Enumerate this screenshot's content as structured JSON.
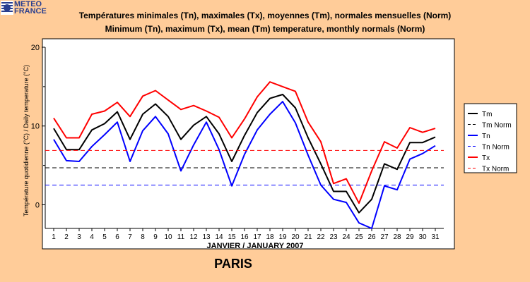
{
  "logo": {
    "line1": "METEO",
    "line2": "FRANCE"
  },
  "titles": {
    "line1": "Températures minimales (Tn), maximales (Tx), moyennes (Tm), normales mensuelles (Norm)",
    "line2": "Minimum (Tn), maximum (Tx), mean (Tm) temperature, monthly normals (Norm)"
  },
  "city": "PARIS",
  "colors": {
    "background": "#FFCC99",
    "plot": "#FFFFFF",
    "tm": "#000000",
    "tn": "#0000FF",
    "tx": "#FF0000"
  },
  "chart_data": {
    "type": "line",
    "xlabel": "JANVIER / JANUARY 2007",
    "ylabel": "Température quotidienne (°C) / Daily temperature (°C)",
    "ylim": [
      -3,
      20
    ],
    "y_ticks": [
      0,
      10,
      20
    ],
    "categories": [
      "1",
      "2",
      "3",
      "4",
      "5",
      "6",
      "7",
      "8",
      "9",
      "10",
      "11",
      "12",
      "13",
      "14",
      "15",
      "16",
      "17",
      "18",
      "19",
      "20",
      "21",
      "22",
      "23",
      "24",
      "25",
      "26",
      "27",
      "28",
      "29",
      "30",
      "31"
    ],
    "legend_position": "right",
    "series": [
      {
        "name": "Tm",
        "color": "#000000",
        "dash": false,
        "values": [
          9.7,
          7.0,
          7.0,
          9.5,
          10.3,
          11.8,
          8.3,
          11.5,
          12.8,
          11.2,
          8.3,
          10.1,
          11.2,
          9.0,
          5.5,
          8.8,
          11.7,
          13.5,
          14.0,
          12.3,
          8.5,
          5.2,
          1.7,
          1.7,
          -1.0,
          0.7,
          5.2,
          4.5,
          7.9,
          7.9,
          8.6
        ]
      },
      {
        "name": "Tm Norm",
        "color": "#000000",
        "dash": true,
        "values": [
          4.7,
          4.7,
          4.7,
          4.7,
          4.7,
          4.7,
          4.7,
          4.7,
          4.7,
          4.7,
          4.7,
          4.7,
          4.7,
          4.7,
          4.7,
          4.7,
          4.7,
          4.7,
          4.7,
          4.7,
          4.7,
          4.7,
          4.7,
          4.7,
          4.7,
          4.7,
          4.7,
          4.7,
          4.7,
          4.7,
          4.7
        ]
      },
      {
        "name": "Tn",
        "color": "#0000FF",
        "dash": false,
        "values": [
          8.3,
          5.6,
          5.5,
          7.4,
          8.9,
          10.5,
          5.5,
          9.4,
          11.2,
          9.0,
          4.3,
          7.6,
          10.5,
          7.0,
          2.4,
          6.4,
          9.5,
          11.5,
          13.1,
          10.4,
          6.3,
          2.5,
          0.7,
          0.3,
          -2.3,
          -3.0,
          2.4,
          1.9,
          5.8,
          6.5,
          7.5
        ]
      },
      {
        "name": "Tn Norm",
        "color": "#0000FF",
        "dash": true,
        "values": [
          2.5,
          2.5,
          2.5,
          2.5,
          2.5,
          2.5,
          2.5,
          2.5,
          2.5,
          2.5,
          2.5,
          2.5,
          2.5,
          2.5,
          2.5,
          2.5,
          2.5,
          2.5,
          2.5,
          2.5,
          2.5,
          2.5,
          2.5,
          2.5,
          2.5,
          2.5,
          2.5,
          2.5,
          2.5,
          2.5,
          2.5
        ]
      },
      {
        "name": "Tx",
        "color": "#FF0000",
        "dash": false,
        "values": [
          11.0,
          8.5,
          8.5,
          11.5,
          11.9,
          13.0,
          11.2,
          13.8,
          14.5,
          13.3,
          12.1,
          12.6,
          11.9,
          11.1,
          8.5,
          10.9,
          13.7,
          15.6,
          15.0,
          14.4,
          10.5,
          8.0,
          2.7,
          3.3,
          0.2,
          4.3,
          8.0,
          7.2,
          9.8,
          9.2,
          9.7
        ]
      },
      {
        "name": "Tx Norm",
        "color": "#FF0000",
        "dash": true,
        "values": [
          6.9,
          6.9,
          6.9,
          6.9,
          6.9,
          6.9,
          6.9,
          6.9,
          6.9,
          6.9,
          6.9,
          6.9,
          6.9,
          6.9,
          6.9,
          6.9,
          6.9,
          6.9,
          6.9,
          6.9,
          6.9,
          6.9,
          6.9,
          6.9,
          6.9,
          6.9,
          6.9,
          6.9,
          6.9,
          6.9,
          6.9
        ]
      }
    ]
  }
}
